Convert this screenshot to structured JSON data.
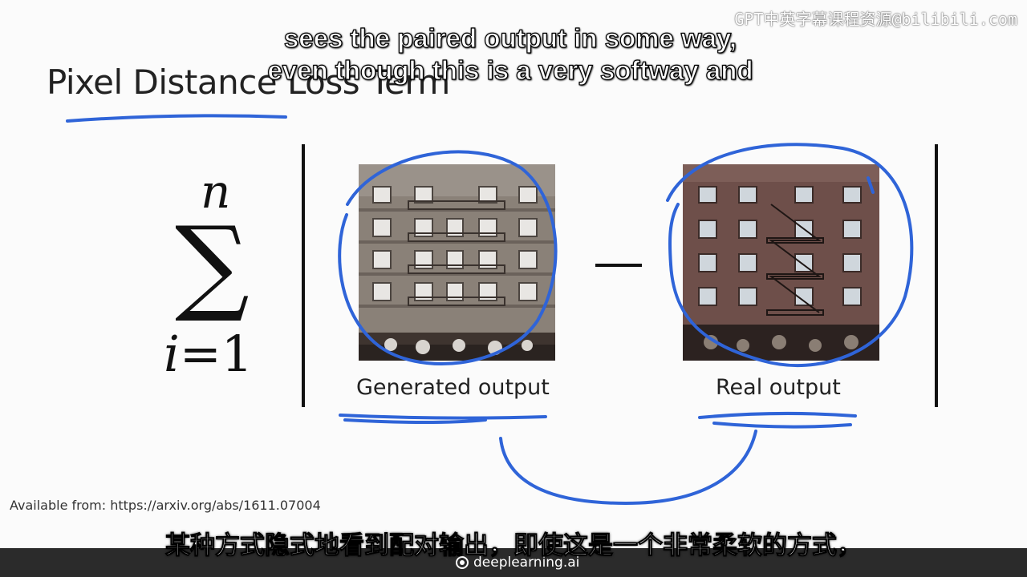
{
  "slide": {
    "title": "Pixel Distance Loss Term",
    "formula": {
      "upper": "n",
      "symbol": "∑",
      "lower_var": "i",
      "lower_rest": "=1"
    },
    "generated_caption": "Generated output",
    "real_caption": "Real output",
    "source": "Available from: https://arxiv.org/abs/1611.07004"
  },
  "subtitles": {
    "english_line1": "sees the paired output in some way,",
    "english_line2": "even though this is a very softway and",
    "chinese": "某种方式隐式地看到配对输出，即使这是一个非常柔软的方式，"
  },
  "watermark": "GPT中英字幕课程资源@bilibili.com",
  "footer": {
    "brand": "deeplearning.ai",
    "brand_icon": "deeplearning-logo-icon"
  },
  "colors": {
    "ink": "#2f64d8",
    "footer_bg": "#2b2b2b",
    "text": "#222222"
  }
}
